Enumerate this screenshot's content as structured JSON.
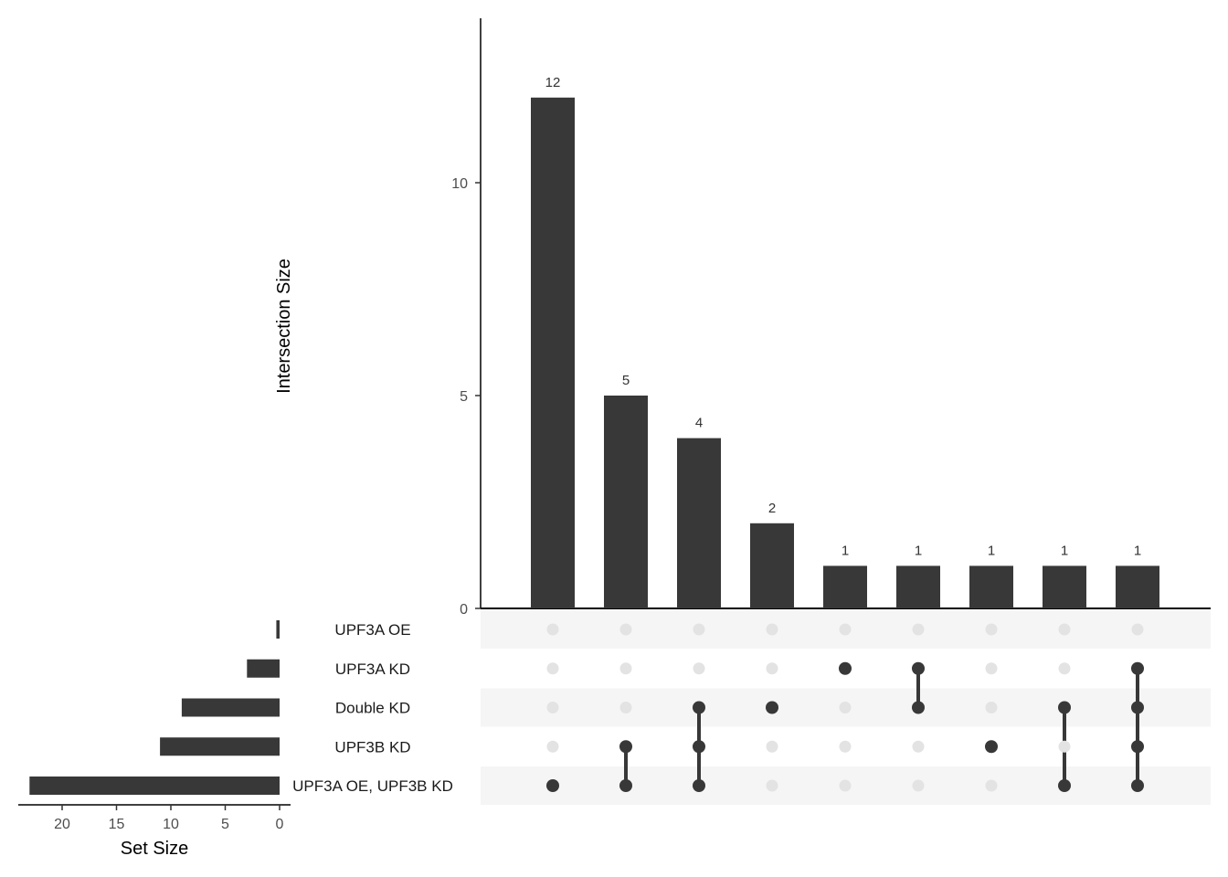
{
  "chart_data": {
    "type": "upset",
    "colors": {
      "bar": "#383838",
      "dot_active": "#383838",
      "dot_inactive": "#e3e3e3",
      "stripe": "#f5f5f5"
    },
    "intersection_axis": {
      "label": "Intersection Size",
      "ticks": [
        0,
        5,
        10
      ],
      "ylim": [
        0,
        13.5
      ]
    },
    "set_size_axis": {
      "label": "Set Size",
      "ticks": [
        20,
        15,
        10,
        5,
        0
      ],
      "xlim": [
        0,
        24.5
      ]
    },
    "sets": [
      {
        "name": "UPF3A OE",
        "size": 0.3
      },
      {
        "name": "UPF3A KD",
        "size": 3
      },
      {
        "name": "Double KD",
        "size": 9
      },
      {
        "name": "UPF3B KD",
        "size": 11
      },
      {
        "name": "UPF3A OE, UPF3B KD",
        "size": 23
      }
    ],
    "intersections": [
      {
        "size": 12,
        "label": "12",
        "members": [
          4
        ]
      },
      {
        "size": 5,
        "label": "5",
        "members": [
          3,
          4
        ]
      },
      {
        "size": 4,
        "label": "4",
        "members": [
          2,
          3,
          4
        ]
      },
      {
        "size": 2,
        "label": "2",
        "members": [
          2
        ]
      },
      {
        "size": 1,
        "label": "1",
        "members": [
          1
        ]
      },
      {
        "size": 1,
        "label": "1",
        "members": [
          1,
          2
        ]
      },
      {
        "size": 1,
        "label": "1",
        "members": [
          3
        ]
      },
      {
        "size": 1,
        "label": "1",
        "members": [
          2,
          4
        ]
      },
      {
        "size": 1,
        "label": "1",
        "members": [
          1,
          2,
          3,
          4
        ]
      }
    ]
  }
}
